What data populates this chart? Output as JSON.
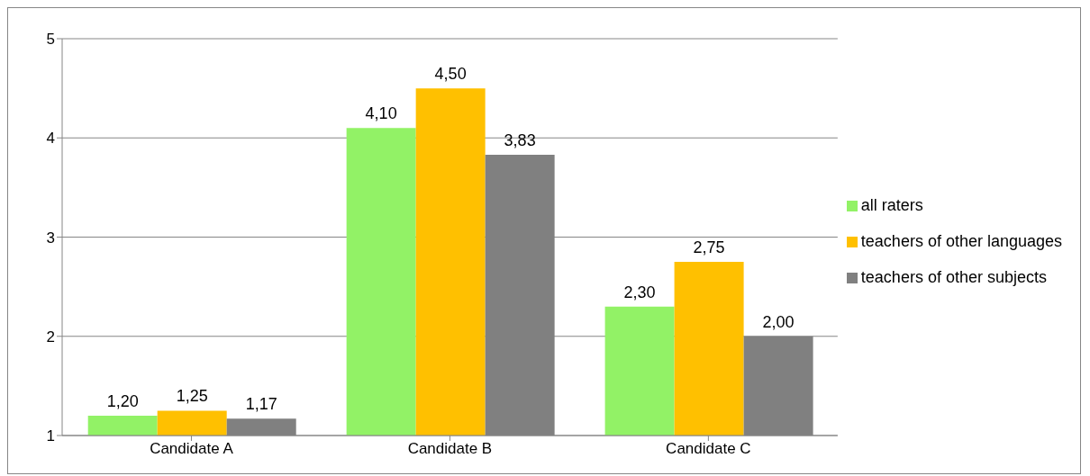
{
  "chart_data": {
    "type": "bar",
    "categories": [
      "Candidate A",
      "Candidate B",
      "Candidate C"
    ],
    "series": [
      {
        "name": "all raters",
        "color": "#92f266",
        "values": [
          1.2,
          4.1,
          2.3
        ],
        "value_labels": [
          "1,20",
          "4,10",
          "2,30"
        ]
      },
      {
        "name": "teachers of other languages",
        "color": "#ffc000",
        "values": [
          1.25,
          4.5,
          2.75
        ],
        "value_labels": [
          "1,25",
          "4,50",
          "2,75"
        ]
      },
      {
        "name": "teachers of other subjects",
        "color": "#808080",
        "values": [
          1.17,
          3.83,
          2.0
        ],
        "value_labels": [
          "1,17",
          "3,83",
          "2,00"
        ]
      }
    ],
    "ylim": [
      1,
      5
    ],
    "yticks": [
      1,
      2,
      3,
      4,
      5
    ],
    "grid": "y",
    "legend": "right"
  }
}
